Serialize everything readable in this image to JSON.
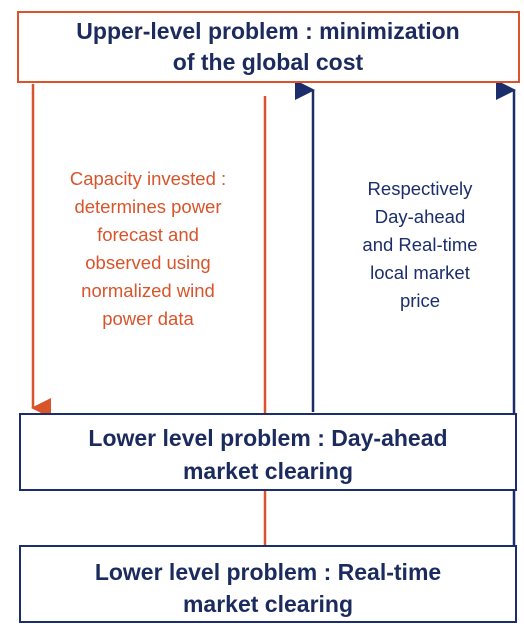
{
  "boxes": [
    {
      "lines": [
        "Upper-level problem : minimization",
        "of the global cost"
      ]
    },
    {
      "lines": [
        "Lower level problem : Day-ahead",
        "market clearing"
      ]
    },
    {
      "lines": [
        "Lower level problem : Real-time",
        "market clearing"
      ]
    }
  ],
  "annotations": [
    {
      "lines": [
        "Capacity invested :",
        "determines power",
        "forecast and",
        "observed using",
        "normalized wind",
        "power data"
      ]
    },
    {
      "lines": [
        "Respectively",
        "Day-ahead",
        "and Real-time",
        "local market",
        "price"
      ]
    }
  ]
}
